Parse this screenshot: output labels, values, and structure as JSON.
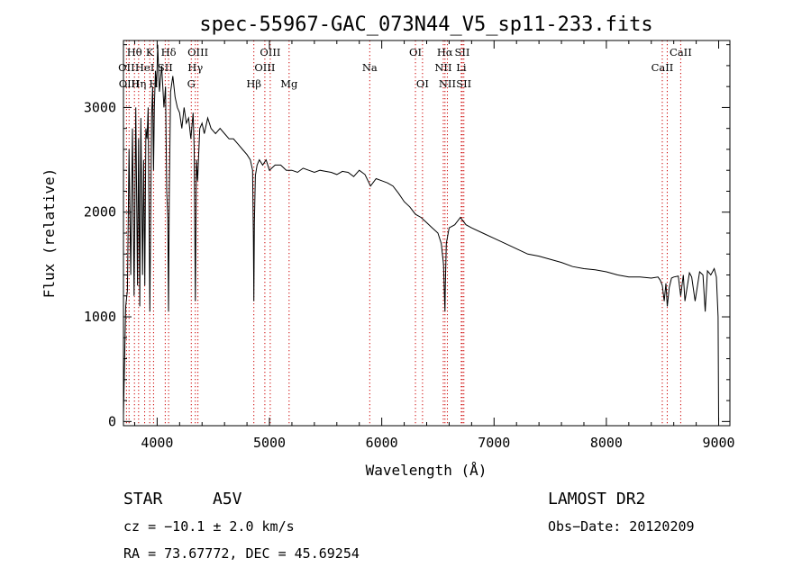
{
  "chart_data": {
    "type": "line",
    "title": "spec-55967-GAC_073N44_V5_sp11-233.fits",
    "xlabel": "Wavelength (Å)",
    "ylabel": "Flux (relative)",
    "xlim": [
      3700,
      9100
    ],
    "ylim": [
      -40,
      3640
    ],
    "x_ticks": [
      4000,
      5000,
      6000,
      7000,
      8000,
      9000
    ],
    "x_tick_labels": [
      "4000",
      "5000",
      "6000",
      "7000",
      "8000",
      "9000"
    ],
    "y_ticks": [
      0,
      1000,
      2000,
      3000
    ],
    "y_tick_labels": [
      "0",
      "1000",
      "2000",
      "3000"
    ],
    "grid": false,
    "series": [
      {
        "x": [
          3700,
          3720,
          3735,
          3750,
          3765,
          3780,
          3795,
          3810,
          3825,
          3835,
          3845,
          3855,
          3870,
          3880,
          3890,
          3900,
          3910,
          3920,
          3935,
          3950,
          3960,
          3968,
          3975,
          3985,
          3995,
          4005,
          4020,
          4040,
          4060,
          4075,
          4085,
          4095,
          4101,
          4108,
          4120,
          4140,
          4160,
          4180,
          4200,
          4220,
          4240,
          4260,
          4280,
          4300,
          4320,
          4330,
          4340,
          4350,
          4360,
          4380,
          4400,
          4420,
          4450,
          4480,
          4520,
          4560,
          4600,
          4640,
          4680,
          4720,
          4760,
          4800,
          4830,
          4850,
          4857,
          4861,
          4866,
          4875,
          4890,
          4910,
          4940,
          4970,
          5000,
          5050,
          5100,
          5150,
          5200,
          5250,
          5300,
          5350,
          5400,
          5450,
          5500,
          5550,
          5600,
          5650,
          5700,
          5750,
          5800,
          5850,
          5900,
          5950,
          6000,
          6050,
          6100,
          6150,
          6200,
          6250,
          6300,
          6350,
          6400,
          6450,
          6500,
          6530,
          6550,
          6560,
          6563,
          6566,
          6575,
          6600,
          6650,
          6700,
          6750,
          6800,
          6900,
          7000,
          7100,
          7200,
          7300,
          7400,
          7500,
          7600,
          7700,
          7800,
          7900,
          8000,
          8100,
          8200,
          8300,
          8400,
          8460,
          8480,
          8498,
          8515,
          8530,
          8542,
          8560,
          8580,
          8600,
          8640,
          8662,
          8685,
          8700,
          8740,
          8760,
          8790,
          8830,
          8860,
          8880,
          8900,
          8930,
          8960,
          8980,
          8995,
          9000
        ],
        "y": [
          60,
          1100,
          1250,
          2600,
          1400,
          2800,
          1200,
          3000,
          1300,
          2700,
          1100,
          2900,
          1400,
          2500,
          1300,
          2800,
          2700,
          3000,
          1050,
          2900,
          3200,
          2400,
          3000,
          3350,
          3200,
          3600,
          3150,
          3400,
          3000,
          3200,
          2200,
          1950,
          1050,
          2100,
          3150,
          3300,
          3100,
          3000,
          2950,
          2800,
          3000,
          2850,
          2900,
          2700,
          2950,
          2600,
          1150,
          2500,
          2300,
          2800,
          2850,
          2750,
          2900,
          2800,
          2750,
          2800,
          2750,
          2700,
          2700,
          2650,
          2600,
          2550,
          2500,
          2400,
          1750,
          1150,
          1900,
          2350,
          2450,
          2500,
          2450,
          2500,
          2400,
          2450,
          2450,
          2400,
          2400,
          2380,
          2420,
          2400,
          2380,
          2400,
          2390,
          2380,
          2360,
          2390,
          2380,
          2340,
          2400,
          2360,
          2250,
          2320,
          2300,
          2280,
          2250,
          2180,
          2100,
          2050,
          1980,
          1950,
          1900,
          1850,
          1800,
          1700,
          1500,
          1150,
          1050,
          1300,
          1700,
          1850,
          1880,
          1950,
          1880,
          1850,
          1800,
          1750,
          1700,
          1650,
          1600,
          1580,
          1550,
          1520,
          1480,
          1460,
          1450,
          1430,
          1400,
          1380,
          1380,
          1370,
          1380,
          1350,
          1300,
          1150,
          1320,
          1100,
          1280,
          1370,
          1380,
          1390,
          1200,
          1400,
          1150,
          1420,
          1380,
          1150,
          1430,
          1400,
          1050,
          1440,
          1400,
          1460,
          1380,
          1000,
          0
        ]
      }
    ],
    "line_labels": [
      {
        "text": "Hθ",
        "x": 3798,
        "row": 1
      },
      {
        "text": "K",
        "x": 3934,
        "row": 1
      },
      {
        "text": "Hδ",
        "x": 4102,
        "row": 1
      },
      {
        "text": "OIII",
        "x": 4363,
        "row": 1
      },
      {
        "text": "OIII",
        "x": 5007,
        "row": 1
      },
      {
        "text": "OI",
        "x": 6300,
        "row": 1
      },
      {
        "text": "Hα",
        "x": 6563,
        "row": 1
      },
      {
        "text": "SII",
        "x": 6717,
        "row": 1
      },
      {
        "text": "CaII",
        "x": 8662,
        "row": 1
      },
      {
        "text": "OII",
        "x": 3727,
        "row": 2
      },
      {
        "text": "HeI",
        "x": 3889,
        "row": 2
      },
      {
        "text": "SII",
        "x": 4072,
        "row": 2
      },
      {
        "text": "Hγ",
        "x": 4340,
        "row": 2
      },
      {
        "text": "OIII",
        "x": 4959,
        "row": 2
      },
      {
        "text": "Na",
        "x": 5893,
        "row": 2
      },
      {
        "text": "NII",
        "x": 6548,
        "row": 2
      },
      {
        "text": "Li",
        "x": 6708,
        "row": 2
      },
      {
        "text": "CaII",
        "x": 8498,
        "row": 2
      },
      {
        "text": "OIII",
        "x": 3750,
        "row": 3
      },
      {
        "text": "Hη",
        "x": 3835,
        "row": 3
      },
      {
        "text": "H",
        "x": 3968,
        "row": 3
      },
      {
        "text": "G",
        "x": 4304,
        "row": 3
      },
      {
        "text": "Hβ",
        "x": 4861,
        "row": 3
      },
      {
        "text": "Mg",
        "x": 5175,
        "row": 3
      },
      {
        "text": "OI",
        "x": 6363,
        "row": 3
      },
      {
        "text": "NII",
        "x": 6584,
        "row": 3
      },
      {
        "text": "SII",
        "x": 6731,
        "row": 3
      }
    ],
    "line_marks": [
      3727,
      3750,
      3798,
      3835,
      3889,
      3934,
      3968,
      4072,
      4102,
      4304,
      4340,
      4363,
      4861,
      4959,
      5007,
      5175,
      5893,
      6300,
      6363,
      6548,
      6563,
      6584,
      6708,
      6717,
      6731,
      8498,
      8542,
      8662
    ],
    "line_color": "#000000",
    "marker_color": "#cc0000"
  },
  "info": {
    "class_label": "STAR",
    "subclass": "A5V",
    "survey": "LAMOST DR2",
    "cz": "cz = −10.1 ± 2.0 km/s",
    "obs_date": "Obs−Date: 20120209",
    "radec": "RA =  73.67772, DEC =  45.69254"
  }
}
